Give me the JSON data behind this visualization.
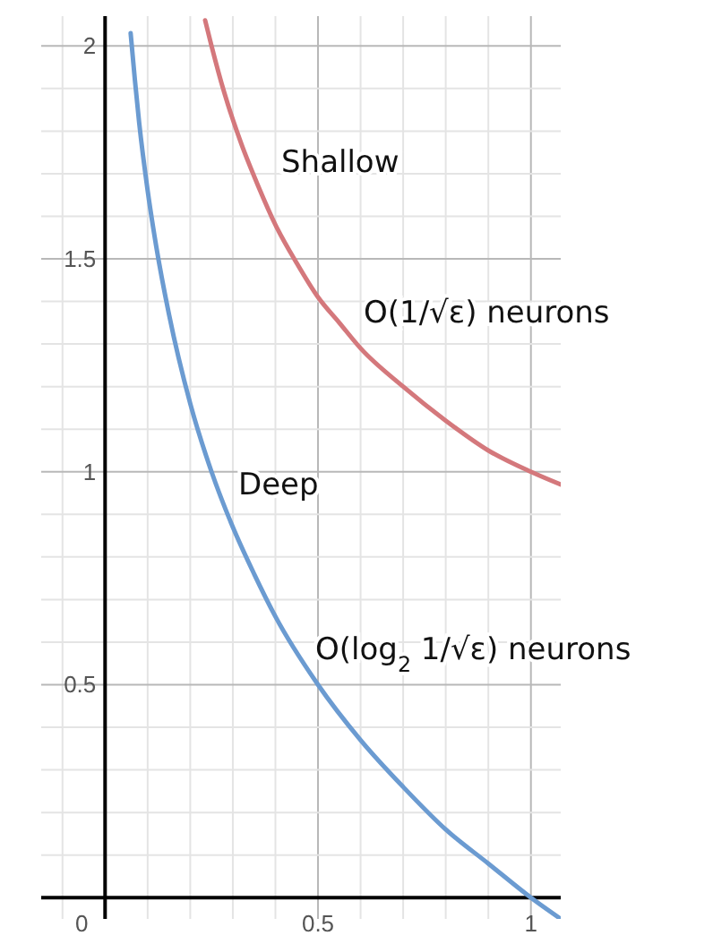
{
  "chart_data": {
    "type": "line",
    "xlim": [
      -0.15,
      1.07
    ],
    "ylim": [
      -0.05,
      2.07
    ],
    "xticks": [
      {
        "value": -0.1,
        "label": null
      },
      {
        "value": 0,
        "label": "0"
      },
      {
        "value": 0.1,
        "label": null
      },
      {
        "value": 0.2,
        "label": null
      },
      {
        "value": 0.3,
        "label": null
      },
      {
        "value": 0.4,
        "label": null
      },
      0.5,
      {
        "value": 0.6,
        "label": null
      },
      {
        "value": 0.7,
        "label": null
      },
      {
        "value": 0.8,
        "label": null
      },
      {
        "value": 0.9,
        "label": null
      },
      1
    ],
    "yticks": [
      {
        "value": 0,
        "label": null
      },
      {
        "value": 0.1,
        "label": null
      },
      {
        "value": 0.2,
        "label": null
      },
      {
        "value": 0.3,
        "label": null
      },
      {
        "value": 0.4,
        "label": null
      },
      0.5,
      {
        "value": 0.6,
        "label": null
      },
      {
        "value": 0.7,
        "label": null
      },
      {
        "value": 0.8,
        "label": null
      },
      {
        "value": 0.9,
        "label": null
      },
      1,
      {
        "value": 1.1,
        "label": null
      },
      {
        "value": 1.2,
        "label": null
      },
      {
        "value": 1.3,
        "label": null
      },
      {
        "value": 1.4,
        "label": null
      },
      1.5,
      {
        "value": 1.6,
        "label": null
      },
      {
        "value": 1.7,
        "label": null
      },
      {
        "value": 1.8,
        "label": null
      },
      {
        "value": 1.9,
        "label": null
      },
      2
    ],
    "grid": true,
    "marker": "none",
    "line_style": "solid",
    "series": [
      {
        "color": "#d4787c",
        "x": [
          0.235,
          0.25,
          0.28,
          0.32,
          0.36,
          0.4,
          0.45,
          0.5,
          0.55,
          0.6,
          0.7,
          0.8,
          0.9,
          1,
          1.07
        ],
        "values": [
          2.06,
          2,
          1.89,
          1.77,
          1.67,
          1.58,
          1.49,
          1.41,
          1.35,
          1.29,
          1.2,
          1.12,
          1.05,
          1,
          0.97
        ]
      },
      {
        "color": "#6b9bd1",
        "x": [
          0.06,
          0.07,
          0.08,
          0.1,
          0.12,
          0.15,
          0.2,
          0.25,
          0.3,
          0.35,
          0.4,
          0.5,
          0.6,
          0.7,
          0.8,
          0.9,
          1,
          1.07
        ],
        "values": [
          2.03,
          1.92,
          1.82,
          1.66,
          1.53,
          1.37,
          1.16,
          1,
          0.87,
          0.76,
          0.66,
          0.5,
          0.37,
          0.26,
          0.16,
          0.08,
          0,
          -0.05
        ]
      }
    ],
    "annotations": [
      "Shallow",
      "O(1/√ε) neurons",
      "Deep",
      "O(log$_{2}$ 1/√ε) neurons"
    ]
  }
}
